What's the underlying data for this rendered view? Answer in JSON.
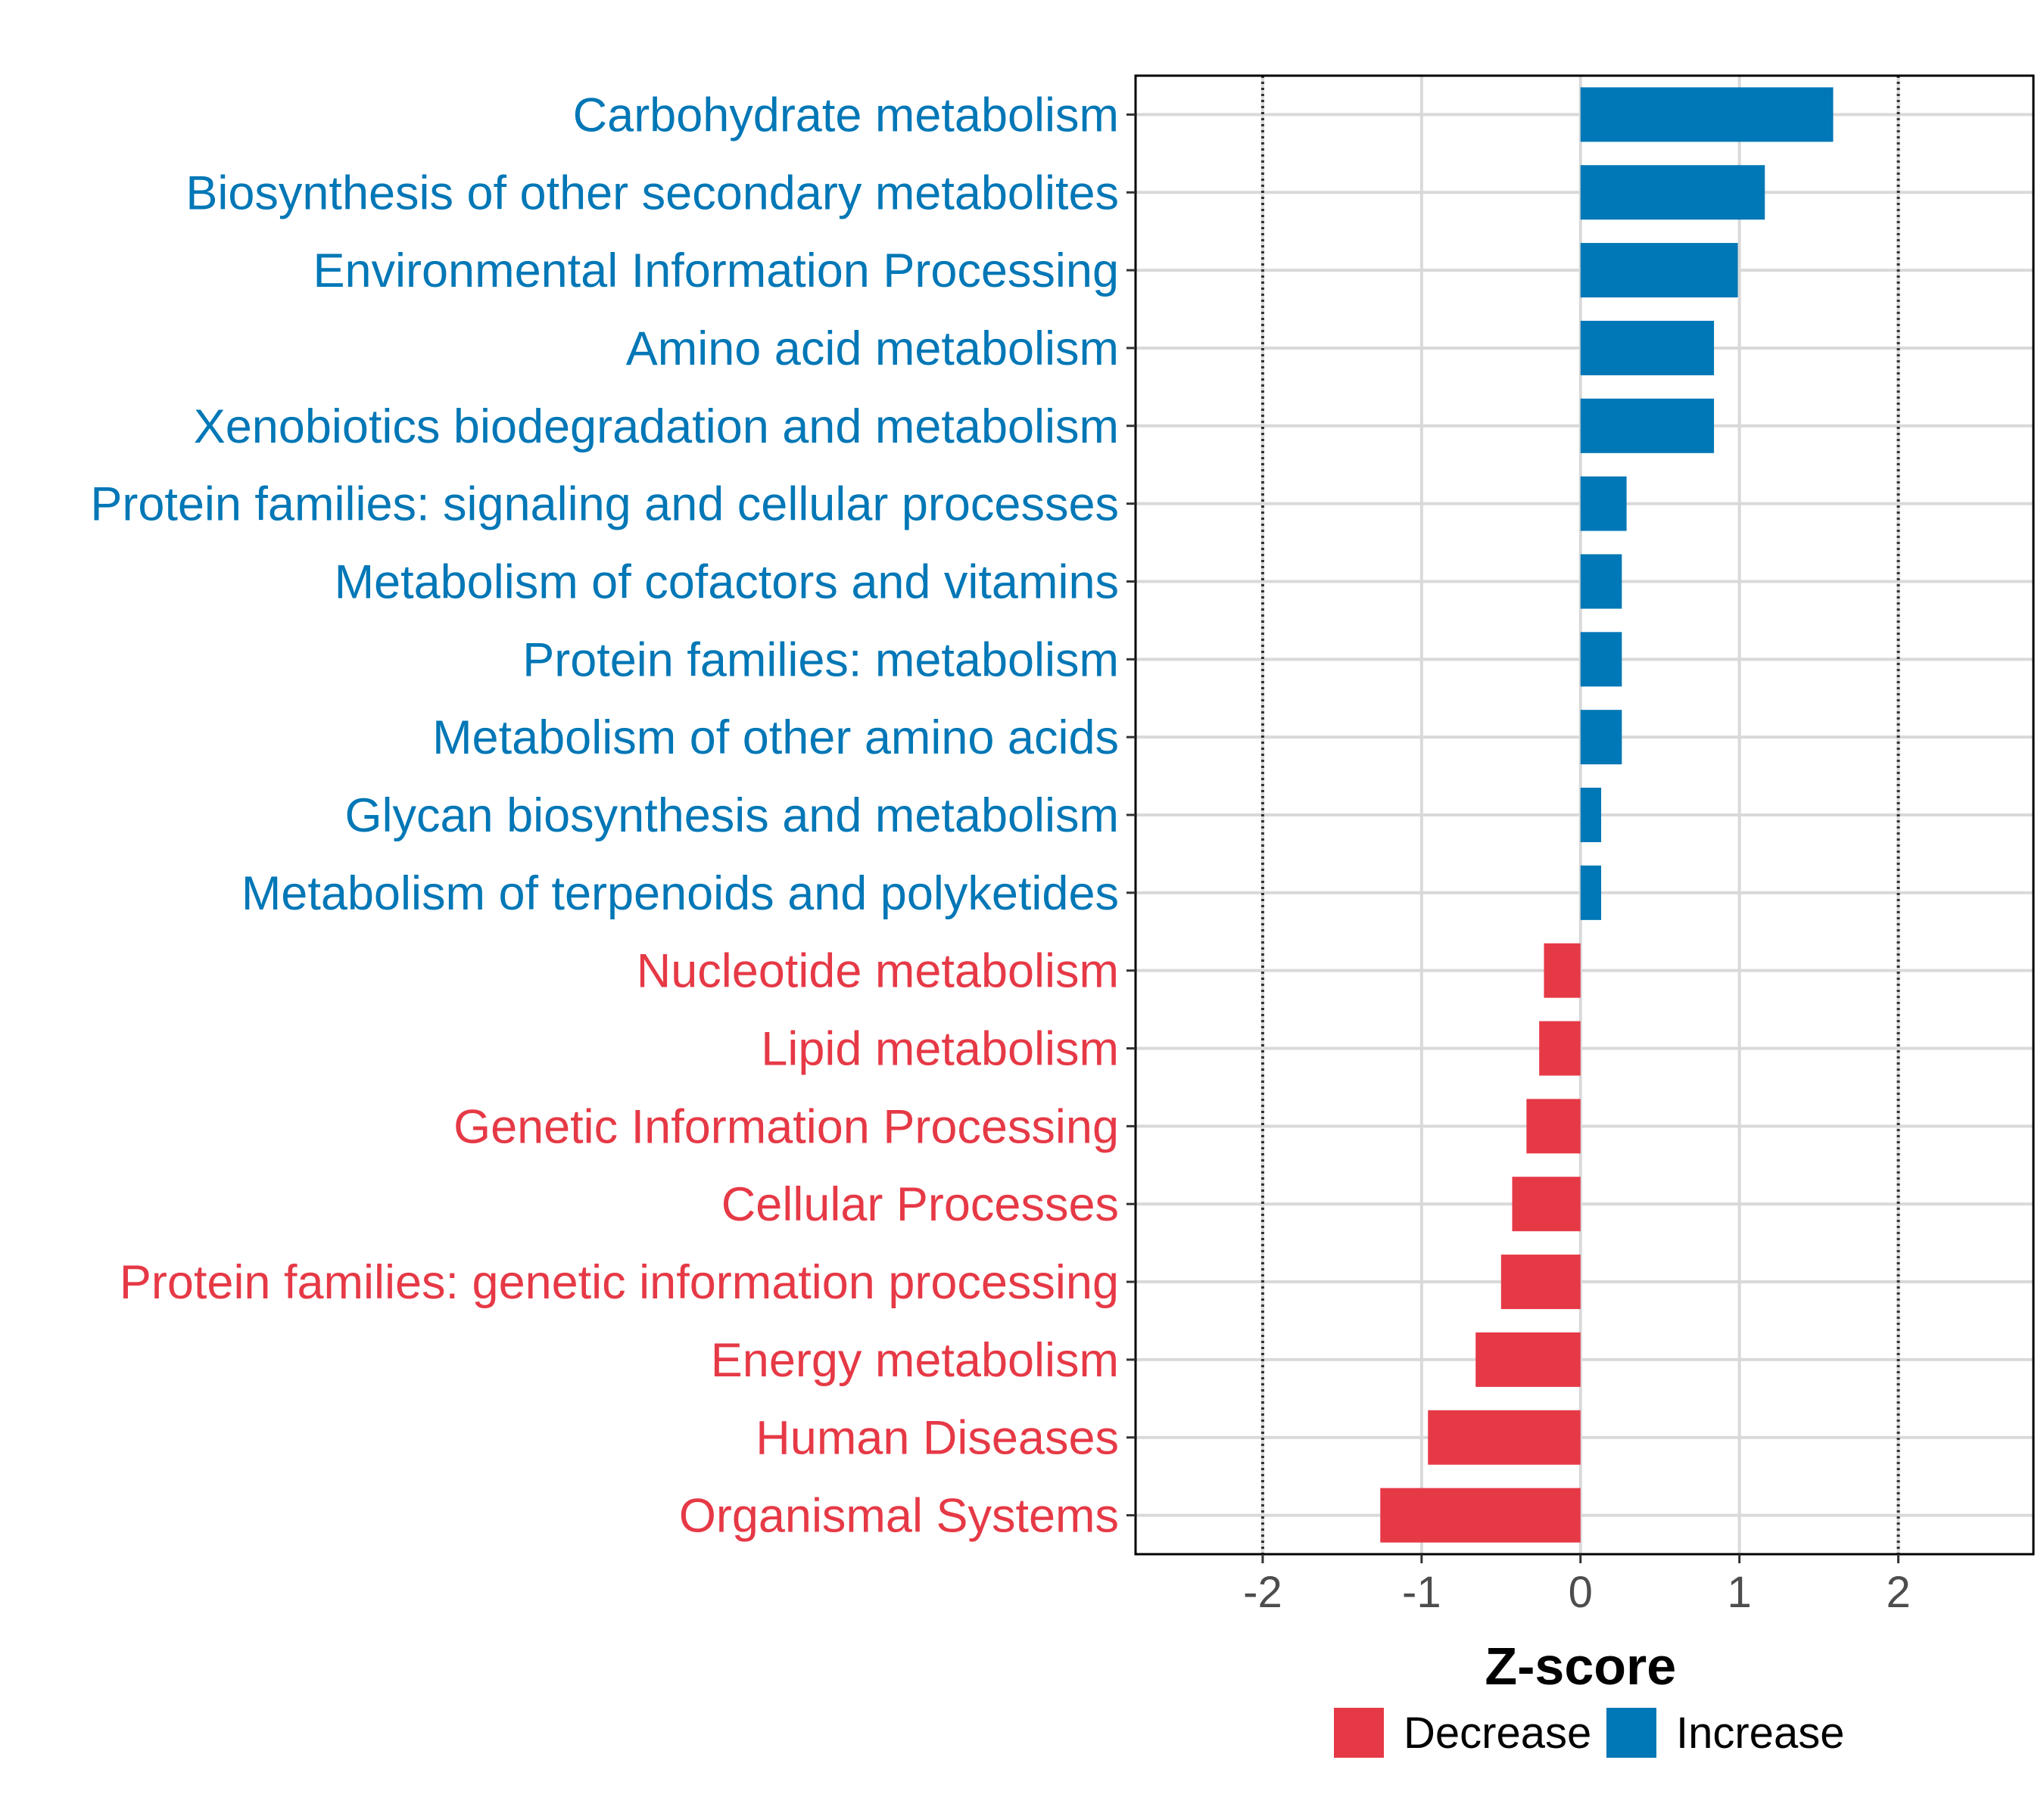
{
  "chart_data": {
    "type": "bar",
    "orientation": "horizontal",
    "xlabel": "Z-score",
    "ylabel": "",
    "xlim": [
      -2.8,
      2.85
    ],
    "x_ticks": [
      -2,
      -1,
      0,
      1,
      2
    ],
    "x_tick_labels": [
      "-2",
      "-1",
      "0",
      "1",
      "2"
    ],
    "reference_lines": [
      -2,
      2
    ],
    "grid": true,
    "colors": {
      "Decrease": "#e63946",
      "Increase": "#0077b6"
    },
    "legend": {
      "position": "bottom",
      "entries": [
        {
          "label": "Decrease",
          "color": "#e63946"
        },
        {
          "label": "Increase",
          "color": "#0077b6"
        }
      ]
    },
    "categories": [
      "Carbohydrate metabolism",
      "Biosynthesis of other secondary metabolites",
      "Environmental Information Processing",
      "Amino acid metabolism",
      "Xenobiotics biodegradation and metabolism",
      "Protein families: signaling and cellular processes",
      "Metabolism of cofactors and vitamins",
      "Protein families: metabolism",
      "Metabolism of other amino acids",
      "Glycan biosynthesis and metabolism",
      "Metabolism of terpenoids and polyketides",
      "Nucleotide metabolism",
      "Lipid metabolism",
      "Genetic Information Processing",
      "Cellular Processes",
      "Protein families: genetic information processing",
      "Energy metabolism",
      "Human Diseases",
      "Organismal Systems"
    ],
    "values": [
      1.59,
      1.16,
      0.99,
      0.84,
      0.84,
      0.29,
      0.26,
      0.26,
      0.26,
      0.13,
      0.13,
      -0.23,
      -0.26,
      -0.34,
      -0.43,
      -0.5,
      -0.66,
      -0.96,
      -1.26
    ],
    "groups": [
      "Increase",
      "Increase",
      "Increase",
      "Increase",
      "Increase",
      "Increase",
      "Increase",
      "Increase",
      "Increase",
      "Increase",
      "Increase",
      "Decrease",
      "Decrease",
      "Decrease",
      "Decrease",
      "Decrease",
      "Decrease",
      "Decrease",
      "Decrease"
    ]
  }
}
